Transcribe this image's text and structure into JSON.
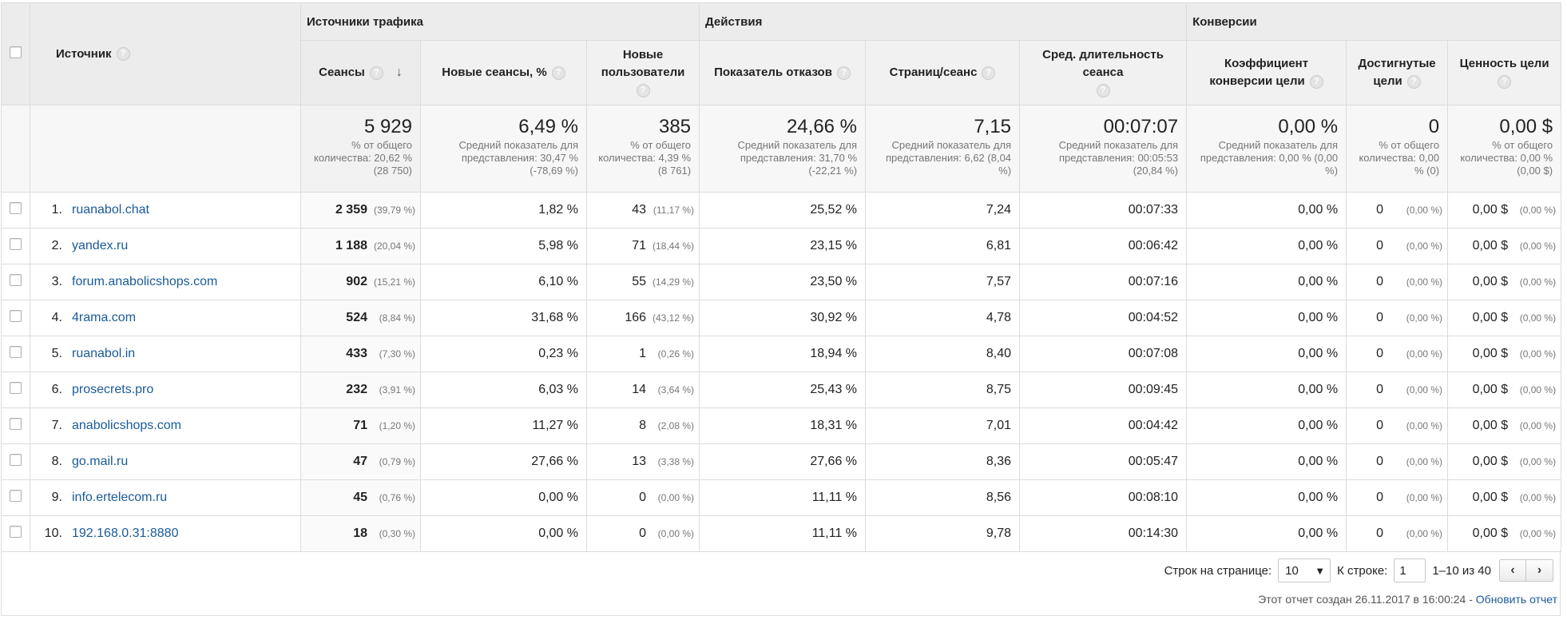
{
  "header": {
    "source_label": "Источник",
    "groups": {
      "traffic": "Источники трафика",
      "actions": "Действия",
      "conversions": "Конверсии"
    },
    "columns": {
      "sessions": "Сеансы",
      "new_sessions": "Новые сеансы, %",
      "new_users": "Новые пользователи",
      "bounce": "Показатель отказов",
      "pages": "Страниц/сеанс",
      "duration": "Сред. длительность сеанса",
      "conv_rate": "Коэффициент конверсии цели",
      "goals": "Достигнутые цели",
      "goal_value": "Ценность цели"
    },
    "help_glyph": "?",
    "sort_arrow": "↓"
  },
  "totals": {
    "sessions": {
      "value": "5 929",
      "note": "% от общего количества: 20,62 % (28 750)"
    },
    "new_sessions": {
      "value": "6,49 %",
      "note": "Средний показатель для представления: 30,47 % (-78,69 %)"
    },
    "new_users": {
      "value": "385",
      "note": "% от общего количества: 4,39 % (8 761)"
    },
    "bounce": {
      "value": "24,66 %",
      "note": "Средний показатель для представления: 31,70 % (-22,21 %)"
    },
    "pages": {
      "value": "7,15",
      "note": "Средний показатель для представления: 6,62 (8,04 %)"
    },
    "duration": {
      "value": "00:07:07",
      "note": "Средний показатель для представления: 00:05:53 (20,84 %)"
    },
    "conv_rate": {
      "value": "0,00 %",
      "note": "Средний показатель для представления: 0,00 % (0,00 %)"
    },
    "goals": {
      "value": "0",
      "note": "% от общего количества: 0,00 % (0)"
    },
    "goal_value": {
      "value": "0,00 $",
      "note": "% от общего количества: 0,00 % (0,00 $)"
    }
  },
  "rows": [
    {
      "num": "1.",
      "source": "ruanabol.chat",
      "sessions": "2 359",
      "sessions_pct": "(39,79 %)",
      "new_sessions": "1,82 %",
      "new_users": "43",
      "new_users_pct": "(11,17 %)",
      "bounce": "25,52 %",
      "pages": "7,24",
      "duration": "00:07:33",
      "conv_rate": "0,00 %",
      "goals": "0",
      "goals_pct": "(0,00 %)",
      "goal_value": "0,00 $",
      "goal_value_pct": "(0,00 %)"
    },
    {
      "num": "2.",
      "source": "yandex.ru",
      "sessions": "1 188",
      "sessions_pct": "(20,04 %)",
      "new_sessions": "5,98 %",
      "new_users": "71",
      "new_users_pct": "(18,44 %)",
      "bounce": "23,15 %",
      "pages": "6,81",
      "duration": "00:06:42",
      "conv_rate": "0,00 %",
      "goals": "0",
      "goals_pct": "(0,00 %)",
      "goal_value": "0,00 $",
      "goal_value_pct": "(0,00 %)"
    },
    {
      "num": "3.",
      "source": "forum.anabolicshops.com",
      "sessions": "902",
      "sessions_pct": "(15,21 %)",
      "new_sessions": "6,10 %",
      "new_users": "55",
      "new_users_pct": "(14,29 %)",
      "bounce": "23,50 %",
      "pages": "7,57",
      "duration": "00:07:16",
      "conv_rate": "0,00 %",
      "goals": "0",
      "goals_pct": "(0,00 %)",
      "goal_value": "0,00 $",
      "goal_value_pct": "(0,00 %)"
    },
    {
      "num": "4.",
      "source": "4rama.com",
      "sessions": "524",
      "sessions_pct": "(8,84 %)",
      "new_sessions": "31,68 %",
      "new_users": "166",
      "new_users_pct": "(43,12 %)",
      "bounce": "30,92 %",
      "pages": "4,78",
      "duration": "00:04:52",
      "conv_rate": "0,00 %",
      "goals": "0",
      "goals_pct": "(0,00 %)",
      "goal_value": "0,00 $",
      "goal_value_pct": "(0,00 %)"
    },
    {
      "num": "5.",
      "source": "ruanabol.in",
      "sessions": "433",
      "sessions_pct": "(7,30 %)",
      "new_sessions": "0,23 %",
      "new_users": "1",
      "new_users_pct": "(0,26 %)",
      "bounce": "18,94 %",
      "pages": "8,40",
      "duration": "00:07:08",
      "conv_rate": "0,00 %",
      "goals": "0",
      "goals_pct": "(0,00 %)",
      "goal_value": "0,00 $",
      "goal_value_pct": "(0,00 %)"
    },
    {
      "num": "6.",
      "source": "prosecrets.pro",
      "sessions": "232",
      "sessions_pct": "(3,91 %)",
      "new_sessions": "6,03 %",
      "new_users": "14",
      "new_users_pct": "(3,64 %)",
      "bounce": "25,43 %",
      "pages": "8,75",
      "duration": "00:09:45",
      "conv_rate": "0,00 %",
      "goals": "0",
      "goals_pct": "(0,00 %)",
      "goal_value": "0,00 $",
      "goal_value_pct": "(0,00 %)"
    },
    {
      "num": "7.",
      "source": "anabolicshops.com",
      "sessions": "71",
      "sessions_pct": "(1,20 %)",
      "new_sessions": "11,27 %",
      "new_users": "8",
      "new_users_pct": "(2,08 %)",
      "bounce": "18,31 %",
      "pages": "7,01",
      "duration": "00:04:42",
      "conv_rate": "0,00 %",
      "goals": "0",
      "goals_pct": "(0,00 %)",
      "goal_value": "0,00 $",
      "goal_value_pct": "(0,00 %)"
    },
    {
      "num": "8.",
      "source": "go.mail.ru",
      "sessions": "47",
      "sessions_pct": "(0,79 %)",
      "new_sessions": "27,66 %",
      "new_users": "13",
      "new_users_pct": "(3,38 %)",
      "bounce": "27,66 %",
      "pages": "8,36",
      "duration": "00:05:47",
      "conv_rate": "0,00 %",
      "goals": "0",
      "goals_pct": "(0,00 %)",
      "goal_value": "0,00 $",
      "goal_value_pct": "(0,00 %)"
    },
    {
      "num": "9.",
      "source": "info.ertelecom.ru",
      "sessions": "45",
      "sessions_pct": "(0,76 %)",
      "new_sessions": "0,00 %",
      "new_users": "0",
      "new_users_pct": "(0,00 %)",
      "bounce": "11,11 %",
      "pages": "8,56",
      "duration": "00:08:10",
      "conv_rate": "0,00 %",
      "goals": "0",
      "goals_pct": "(0,00 %)",
      "goal_value": "0,00 $",
      "goal_value_pct": "(0,00 %)"
    },
    {
      "num": "10.",
      "source": "192.168.0.31:8880",
      "sessions": "18",
      "sessions_pct": "(0,30 %)",
      "new_sessions": "0,00 %",
      "new_users": "0",
      "new_users_pct": "(0,00 %)",
      "bounce": "11,11 %",
      "pages": "9,78",
      "duration": "00:14:30",
      "conv_rate": "0,00 %",
      "goals": "0",
      "goals_pct": "(0,00 %)",
      "goal_value": "0,00 $",
      "goal_value_pct": "(0,00 %)"
    }
  ],
  "footer": {
    "rows_per_page_label": "Строк на странице:",
    "rows_per_page_value": "10",
    "dropdown_glyph": "▼",
    "goto_label": "К строке:",
    "goto_value": "1",
    "range_text": "1–10 из 40",
    "prev_glyph": "‹",
    "next_glyph": "›",
    "created_text": "Этот отчет создан 26.11.2017 в 16:00:24 -",
    "refresh_link": "Обновить отчет"
  }
}
